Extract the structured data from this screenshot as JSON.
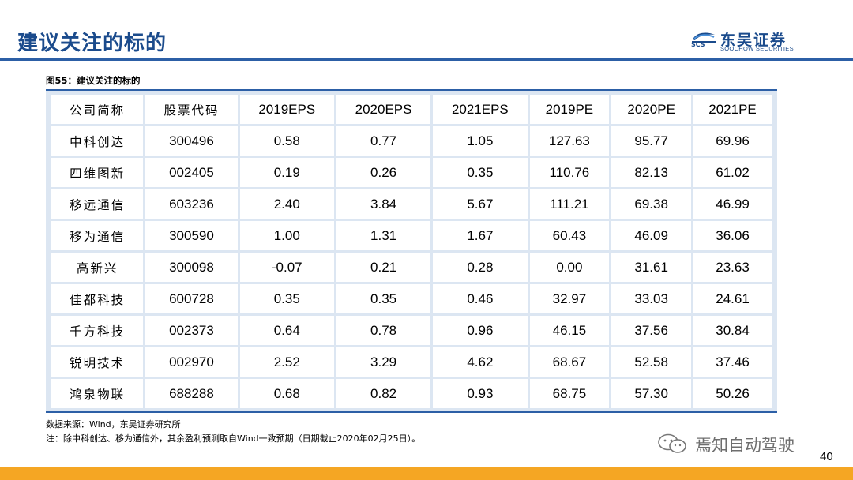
{
  "slide": {
    "title": "建议关注的标的",
    "page_number": "40"
  },
  "logo": {
    "mark_text": "SCS",
    "name": "东吴证券",
    "subtitle": "SOOCHOW SECURITIES"
  },
  "figure": {
    "caption": "图55：建议关注的标的"
  },
  "table": {
    "headers": [
      "公司简称",
      "股票代码",
      "2019EPS",
      "2020EPS",
      "2021EPS",
      "2019PE",
      "2020PE",
      "2021PE"
    ],
    "rows": [
      [
        "中科创达",
        "300496",
        "0.58",
        "0.77",
        "1.05",
        "127.63",
        "95.77",
        "69.96"
      ],
      [
        "四维图新",
        "002405",
        "0.19",
        "0.26",
        "0.35",
        "110.76",
        "82.13",
        "61.02"
      ],
      [
        "移远通信",
        "603236",
        "2.40",
        "3.84",
        "5.67",
        "111.21",
        "69.38",
        "46.99"
      ],
      [
        "移为通信",
        "300590",
        "1.00",
        "1.31",
        "1.67",
        "60.43",
        "46.09",
        "36.06"
      ],
      [
        "高新兴",
        "300098",
        "-0.07",
        "0.21",
        "0.28",
        "0.00",
        "31.61",
        "23.63"
      ],
      [
        "佳都科技",
        "600728",
        "0.35",
        "0.35",
        "0.46",
        "32.97",
        "33.03",
        "24.61"
      ],
      [
        "千方科技",
        "002373",
        "0.64",
        "0.78",
        "0.96",
        "46.15",
        "37.56",
        "30.84"
      ],
      [
        "锐明技术",
        "002970",
        "2.52",
        "3.29",
        "4.62",
        "68.67",
        "52.58",
        "37.46"
      ],
      [
        "鸿泉物联",
        "688288",
        "0.68",
        "0.82",
        "0.93",
        "68.75",
        "57.30",
        "50.26"
      ]
    ]
  },
  "notes": {
    "source": "数据来源：Wind，东吴证券研究所",
    "footnote": "注：除中科创达、移为通信外，其余盈利预测取自Wind一致预期（日期截止2020年02月25日）。"
  },
  "watermark": {
    "text": "焉知自动驾驶",
    "icon": "wechat-icon"
  },
  "colors": {
    "title": "#1b4b8c",
    "rule": "#2c5fa6",
    "table_bg": "#dce6f2",
    "bottom_bar": "#f5a623"
  }
}
